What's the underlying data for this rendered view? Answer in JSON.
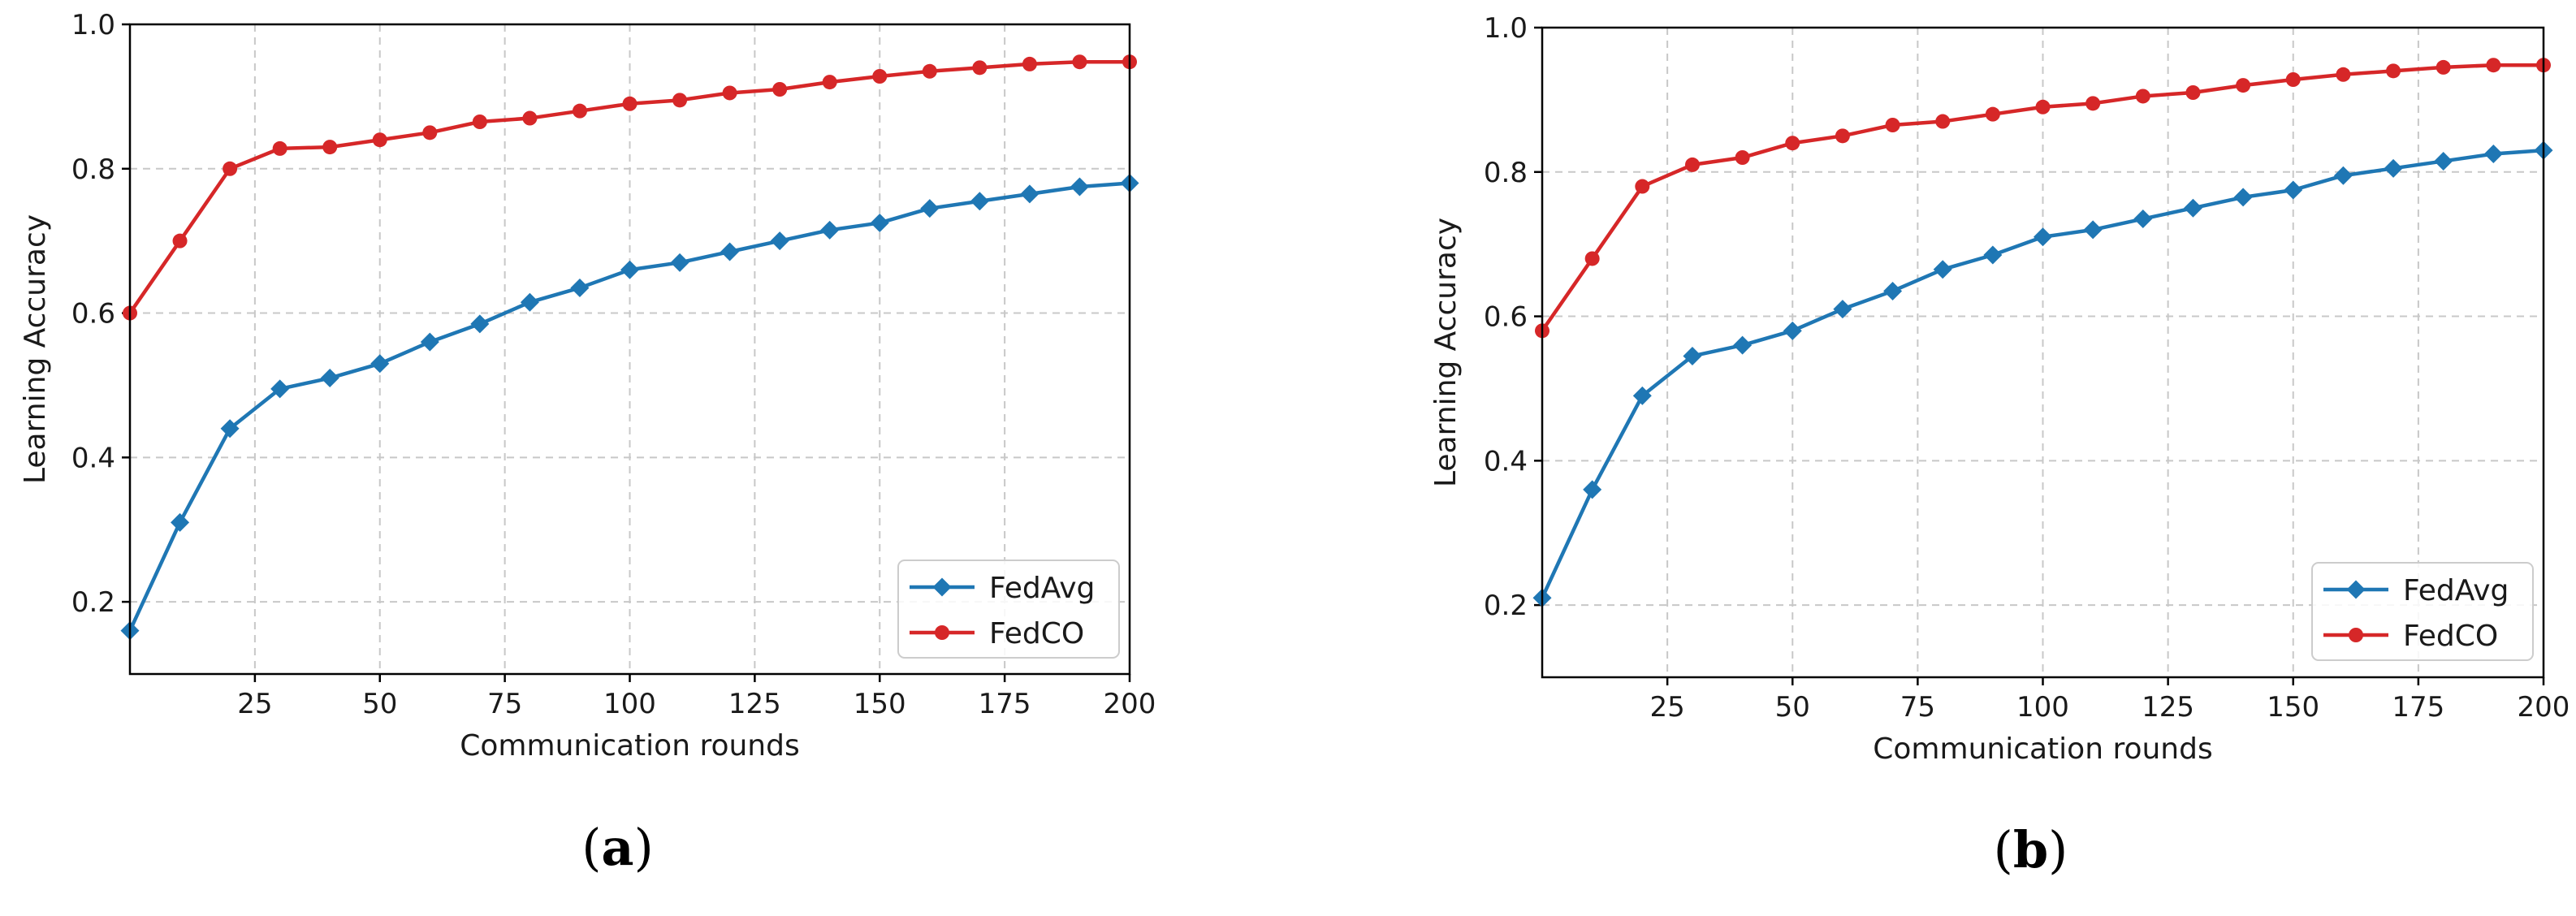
{
  "chart_data": [
    {
      "type": "line",
      "panel_label": "a",
      "title": "",
      "xlabel": "Communication rounds",
      "ylabel": "Learning Accuracy",
      "xlim": [
        0,
        200
      ],
      "ylim": [
        0.1,
        1.0
      ],
      "xticks": [
        25,
        50,
        75,
        100,
        125,
        150,
        175,
        200
      ],
      "yticks": [
        0.2,
        0.4,
        0.6,
        0.8,
        1.0
      ],
      "grid": true,
      "legend_position": "bottom-right",
      "x": [
        0,
        10,
        20,
        30,
        40,
        50,
        60,
        70,
        80,
        90,
        100,
        110,
        120,
        130,
        140,
        150,
        160,
        170,
        180,
        190,
        200
      ],
      "series": [
        {
          "name": "FedAvg",
          "color": "#1f77b4",
          "marker": "diamond",
          "values": [
            0.16,
            0.31,
            0.44,
            0.495,
            0.51,
            0.53,
            0.56,
            0.585,
            0.615,
            0.635,
            0.66,
            0.67,
            0.685,
            0.7,
            0.715,
            0.725,
            0.745,
            0.755,
            0.765,
            0.775,
            0.78
          ]
        },
        {
          "name": "FedCO",
          "color": "#d62728",
          "marker": "circle",
          "values": [
            0.6,
            0.7,
            0.8,
            0.828,
            0.83,
            0.84,
            0.85,
            0.865,
            0.87,
            0.88,
            0.89,
            0.895,
            0.905,
            0.91,
            0.92,
            0.928,
            0.935,
            0.94,
            0.945,
            0.948,
            0.948
          ]
        }
      ]
    },
    {
      "type": "line",
      "panel_label": "b",
      "title": "",
      "xlabel": "Communication rounds",
      "ylabel": "Learning Accuracy",
      "xlim": [
        0,
        200
      ],
      "ylim": [
        0.1,
        1.0
      ],
      "xticks": [
        25,
        50,
        75,
        100,
        125,
        150,
        175,
        200
      ],
      "yticks": [
        0.2,
        0.4,
        0.6,
        0.8,
        1.0
      ],
      "grid": true,
      "legend_position": "bottom-right",
      "x": [
        0,
        10,
        20,
        30,
        40,
        50,
        60,
        70,
        80,
        90,
        100,
        110,
        120,
        130,
        140,
        150,
        160,
        170,
        180,
        190,
        200
      ],
      "series": [
        {
          "name": "FedAvg",
          "color": "#1f77b4",
          "marker": "diamond",
          "values": [
            0.21,
            0.36,
            0.49,
            0.545,
            0.56,
            0.58,
            0.61,
            0.635,
            0.665,
            0.685,
            0.71,
            0.72,
            0.735,
            0.75,
            0.765,
            0.775,
            0.795,
            0.805,
            0.815,
            0.825,
            0.83
          ]
        },
        {
          "name": "FedCO",
          "color": "#d62728",
          "marker": "circle",
          "values": [
            0.58,
            0.68,
            0.78,
            0.81,
            0.82,
            0.84,
            0.85,
            0.865,
            0.87,
            0.88,
            0.89,
            0.895,
            0.905,
            0.91,
            0.92,
            0.928,
            0.935,
            0.94,
            0.945,
            0.948,
            0.948
          ]
        }
      ]
    }
  ]
}
